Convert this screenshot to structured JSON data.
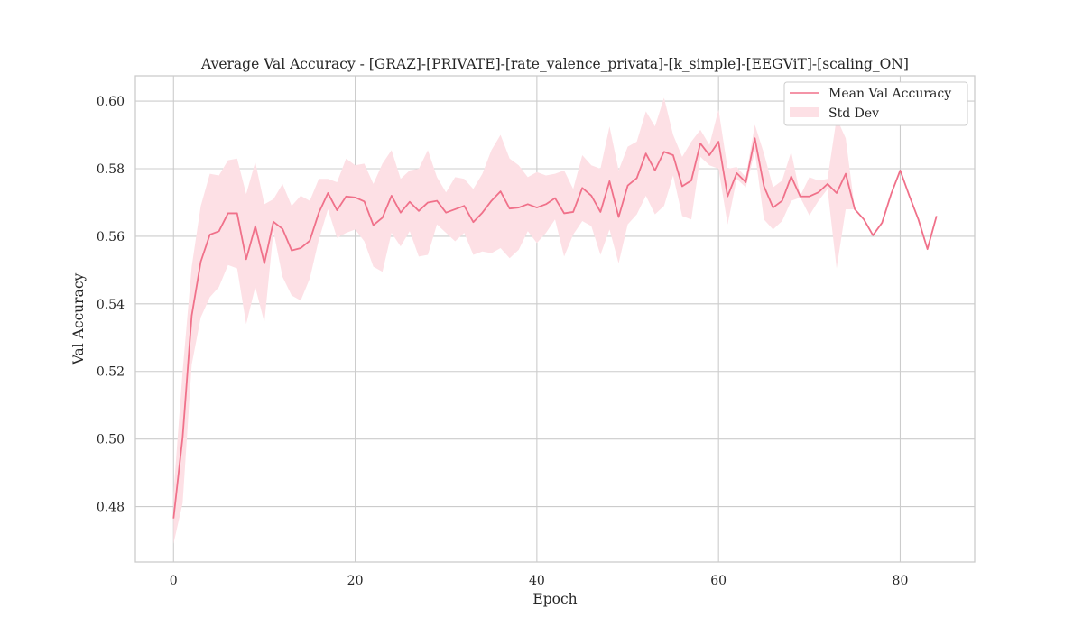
{
  "chart_data": {
    "type": "line",
    "title": "Average Val Accuracy - [GRAZ]-[PRIVATE]-[rate_valence_privata]-[k_simple]-[EEGViT]-[scaling_ON]",
    "xlabel": "Epoch",
    "ylabel": "Val Accuracy",
    "xlim": [
      -4.2,
      88.2
    ],
    "ylim": [
      0.4636,
      0.6075
    ],
    "xticks": [
      0,
      20,
      40,
      60,
      80
    ],
    "yticks": [
      0.48,
      0.5,
      0.52,
      0.54,
      0.56,
      0.58,
      0.6
    ],
    "xtick_labels": [
      "0",
      "20",
      "40",
      "60",
      "80"
    ],
    "ytick_labels": [
      "0.48",
      "0.50",
      "0.52",
      "0.54",
      "0.56",
      "0.58",
      "0.60"
    ],
    "grid": true,
    "legend_position": "top-right",
    "colors": {
      "line": "#f0718a",
      "band": "#fde0e5",
      "grid": "#cccccc",
      "frame": "#cccccc"
    },
    "x": [
      0,
      1,
      2,
      3,
      4,
      5,
      6,
      7,
      8,
      9,
      10,
      11,
      12,
      13,
      14,
      15,
      16,
      17,
      18,
      19,
      20,
      21,
      22,
      23,
      24,
      25,
      26,
      27,
      28,
      29,
      30,
      31,
      32,
      33,
      34,
      35,
      36,
      37,
      38,
      39,
      40,
      41,
      42,
      43,
      44,
      45,
      46,
      47,
      48,
      49,
      50,
      51,
      52,
      53,
      54,
      55,
      56,
      57,
      58,
      59,
      60,
      61,
      62,
      63,
      64,
      65,
      66,
      67,
      68,
      69,
      70,
      71,
      72,
      73,
      74,
      75,
      76,
      77,
      78,
      79,
      80,
      81,
      82,
      83,
      84
    ],
    "series": [
      {
        "name": "Mean Val Accuracy",
        "values": [
          0.4765,
          0.5005,
          0.5365,
          0.5525,
          0.5605,
          0.5615,
          0.5668,
          0.5668,
          0.5532,
          0.563,
          0.552,
          0.5643,
          0.5622,
          0.5558,
          0.5565,
          0.5587,
          0.567,
          0.5728,
          0.5677,
          0.5718,
          0.5715,
          0.5703,
          0.5633,
          0.5655,
          0.572,
          0.567,
          0.5702,
          0.5675,
          0.57,
          0.5705,
          0.567,
          0.568,
          0.569,
          0.5642,
          0.567,
          0.5705,
          0.5733,
          0.5682,
          0.5685,
          0.5695,
          0.5685,
          0.5695,
          0.5713,
          0.5668,
          0.5672,
          0.5743,
          0.572,
          0.5672,
          0.5763,
          0.5657,
          0.575,
          0.5772,
          0.5845,
          0.5795,
          0.585,
          0.584,
          0.5748,
          0.5765,
          0.5875,
          0.584,
          0.588,
          0.5718,
          0.5787,
          0.576,
          0.589,
          0.5748,
          0.5685,
          0.5705,
          0.5777,
          0.5718,
          0.5718,
          0.573,
          0.5755,
          0.5728,
          0.5785,
          0.568,
          0.565,
          0.5603,
          0.564,
          0.5725,
          0.5795,
          0.572,
          0.565,
          0.5562,
          0.566
        ]
      }
    ],
    "band": {
      "name": "Std Dev",
      "lower": [
        0.469,
        0.481,
        0.522,
        0.536,
        0.542,
        0.545,
        0.5515,
        0.5505,
        0.534,
        0.545,
        0.5345,
        0.5615,
        0.548,
        0.5425,
        0.541,
        0.5475,
        0.559,
        0.568,
        0.5595,
        0.561,
        0.562,
        0.5585,
        0.551,
        0.5495,
        0.561,
        0.557,
        0.5615,
        0.554,
        0.5545,
        0.5635,
        0.561,
        0.5585,
        0.561,
        0.5545,
        0.5555,
        0.555,
        0.5565,
        0.5535,
        0.556,
        0.5615,
        0.558,
        0.561,
        0.565,
        0.554,
        0.5605,
        0.5645,
        0.563,
        0.5545,
        0.562,
        0.552,
        0.5635,
        0.5665,
        0.572,
        0.5665,
        0.569,
        0.578,
        0.566,
        0.565,
        0.5835,
        0.581,
        0.58,
        0.5635,
        0.577,
        0.5745,
        0.585,
        0.565,
        0.562,
        0.5645,
        0.5705,
        0.5715,
        0.5662,
        0.5705,
        0.574,
        0.5505,
        0.568,
        0.568,
        0.565,
        0.5603,
        0.564,
        0.5725,
        0.5795,
        0.572,
        0.565,
        0.5562,
        0.566
      ],
      "upper": [
        0.484,
        0.52,
        0.551,
        0.569,
        0.5785,
        0.578,
        0.5825,
        0.583,
        0.5725,
        0.582,
        0.5695,
        0.571,
        0.5755,
        0.569,
        0.572,
        0.5705,
        0.577,
        0.577,
        0.576,
        0.583,
        0.581,
        0.5815,
        0.5755,
        0.5815,
        0.5855,
        0.577,
        0.5795,
        0.58,
        0.5855,
        0.5775,
        0.573,
        0.5775,
        0.577,
        0.574,
        0.5785,
        0.5855,
        0.59,
        0.583,
        0.581,
        0.5775,
        0.579,
        0.578,
        0.5785,
        0.5795,
        0.574,
        0.584,
        0.581,
        0.58,
        0.5925,
        0.5795,
        0.5865,
        0.588,
        0.597,
        0.5925,
        0.601,
        0.59,
        0.5835,
        0.588,
        0.5915,
        0.587,
        0.5975,
        0.58,
        0.5805,
        0.5775,
        0.593,
        0.5845,
        0.5745,
        0.5765,
        0.585,
        0.572,
        0.5775,
        0.5765,
        0.577,
        0.595,
        0.589,
        0.568,
        0.565,
        0.5603,
        0.564,
        0.5725,
        0.5795,
        0.572,
        0.565,
        0.5562,
        0.566
      ]
    }
  }
}
